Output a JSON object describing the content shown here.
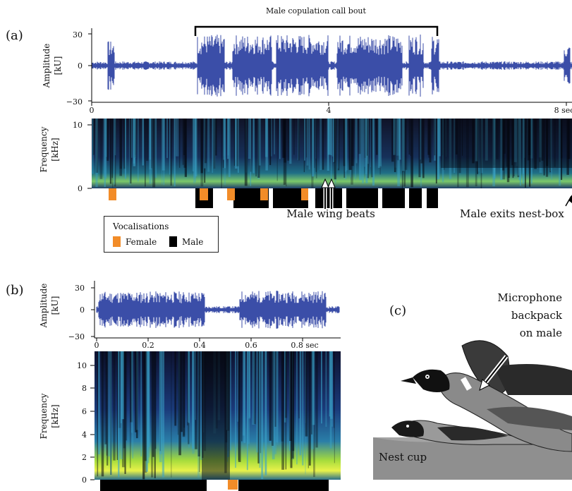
{
  "panel_a": {
    "label": "(a)",
    "bracket_label": "Male copulation call bout",
    "amp_ylabel": [
      "Amplitude",
      "[kU]"
    ],
    "amp_ticks": [
      "30",
      "0",
      "−30"
    ],
    "time_ticks": [
      "0",
      "4",
      "8 sec"
    ],
    "freq_ylabel": [
      "Frequency",
      "[kHz]"
    ],
    "freq_ticks": [
      "10",
      "0"
    ],
    "annotation_wing": "Male wing beats",
    "annotation_exit": "Male exits nest-box"
  },
  "legend": {
    "title": "Vocalisations",
    "female_label": "Female",
    "male_label": "Male",
    "female_color": "#f28c28",
    "male_color": "#000000"
  },
  "panel_b": {
    "label": "(b)",
    "amp_ylabel": [
      "Amplitude",
      "[kU]"
    ],
    "amp_ticks": [
      "30",
      "0",
      "−30"
    ],
    "time_ticks": [
      "0",
      "0.2",
      "0.4",
      "0.6",
      "0.8 sec"
    ],
    "freq_ylabel": [
      "Frequency",
      "[kHz]"
    ],
    "freq_ticks": [
      "10",
      "8",
      "6",
      "4",
      "2",
      "0"
    ]
  },
  "panel_c": {
    "label": "(c)",
    "microphone_label": [
      "Microphone",
      "backpack",
      "on male"
    ],
    "nest_label": "Nest cup"
  },
  "colors": {
    "waveform": "#3b4ea8",
    "spectrogram_low": "#1a1f3a",
    "spectrogram_mid": "#1f7f8a",
    "spectrogram_high": "#c9e63b"
  }
}
